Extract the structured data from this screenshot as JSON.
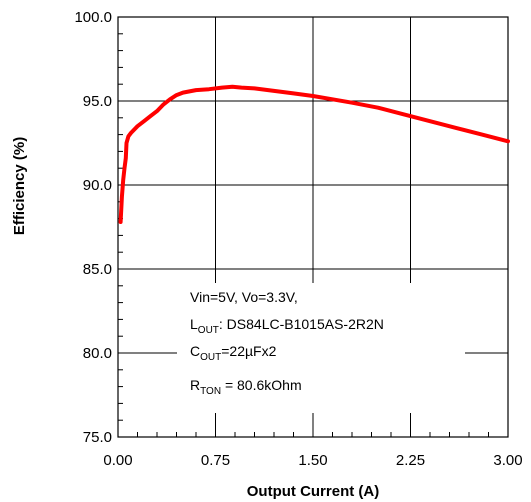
{
  "chart_data": {
    "type": "line",
    "title": "",
    "xlabel": "Output Current (A)",
    "ylabel": "Efficiency (%)",
    "xlim": [
      0,
      3
    ],
    "ylim": [
      75,
      100
    ],
    "x_ticks": [
      "0.00",
      "0.75",
      "1.50",
      "2.25",
      "3.00"
    ],
    "y_ticks": [
      "75.0",
      "80.0",
      "85.0",
      "90.0",
      "95.0",
      "100.0"
    ],
    "grid": true,
    "series": [
      {
        "color": "#ff0000",
        "x": [
          0.02,
          0.025,
          0.03,
          0.04,
          0.05,
          0.06,
          0.065,
          0.08,
          0.1,
          0.15,
          0.2,
          0.25,
          0.3,
          0.35,
          0.4,
          0.45,
          0.5,
          0.6,
          0.7,
          0.8,
          0.88,
          0.95,
          1.05,
          1.2,
          1.35,
          1.5,
          1.65,
          1.8,
          2.0,
          2.2,
          2.4,
          2.6,
          2.8,
          3.0
        ],
        "y": [
          87.8,
          88.6,
          89.3,
          90.3,
          91.0,
          91.6,
          92.5,
          92.9,
          93.1,
          93.5,
          93.8,
          94.1,
          94.4,
          94.8,
          95.1,
          95.35,
          95.5,
          95.65,
          95.7,
          95.8,
          95.85,
          95.8,
          95.75,
          95.6,
          95.45,
          95.3,
          95.1,
          94.9,
          94.6,
          94.2,
          93.8,
          93.4,
          93.0,
          92.6
        ]
      }
    ],
    "annotation": {
      "line1": "Vin=5V, Vo=3.3V,",
      "l_main": "L",
      "l_sub": "OUT",
      "l_rest": ": DS84LC-B1015AS-2R2N",
      "c_main": "C",
      "c_sub": "OUT",
      "c_rest": "=22µFx2",
      "r_main": "R",
      "r_sub": "TON",
      "r_rest": " = 80.6kOhm"
    }
  }
}
